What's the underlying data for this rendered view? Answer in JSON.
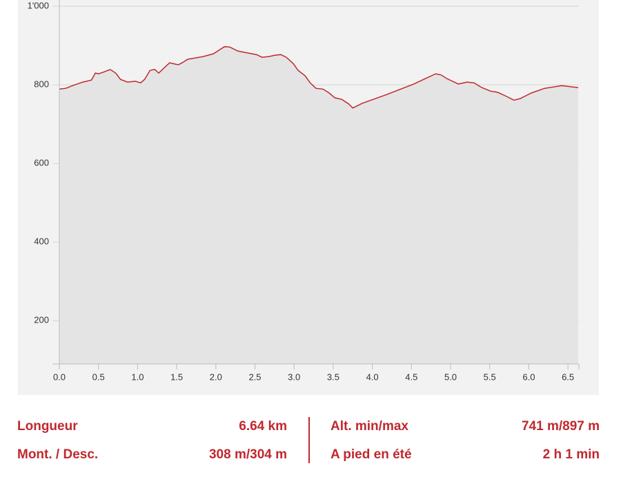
{
  "chart_data": {
    "type": "area",
    "x": [
      0,
      0.08,
      0.17,
      0.3,
      0.41,
      0.46,
      0.5,
      0.56,
      0.65,
      0.72,
      0.78,
      0.87,
      0.97,
      1.04,
      1.09,
      1.16,
      1.22,
      1.27,
      1.36,
      1.41,
      1.52,
      1.57,
      1.64,
      1.73,
      1.84,
      1.97,
      2.04,
      2.11,
      2.18,
      2.28,
      2.41,
      2.52,
      2.59,
      2.68,
      2.75,
      2.83,
      2.9,
      2.99,
      3.05,
      3.14,
      3.21,
      3.28,
      3.37,
      3.45,
      3.52,
      3.61,
      3.7,
      3.75,
      3.87,
      4.18,
      4.53,
      4.7,
      4.81,
      4.88,
      4.95,
      5.1,
      5.21,
      5.3,
      5.4,
      5.51,
      5.6,
      5.7,
      5.81,
      5.89,
      6.03,
      6.2,
      6.42,
      6.63
    ],
    "series": [
      {
        "color": "#c0282d",
        "values": [
          789,
          791,
          798,
          807,
          812,
          830,
          828,
          832,
          839,
          830,
          814,
          807,
          809,
          805,
          814,
          837,
          839,
          830,
          847,
          856,
          851,
          856,
          865,
          868,
          872,
          879,
          888,
          897,
          896,
          886,
          881,
          877,
          870,
          872,
          875,
          877,
          870,
          854,
          837,
          823,
          804,
          791,
          789,
          779,
          767,
          763,
          751,
          741,
          753,
          775,
          802,
          818,
          828,
          825,
          816,
          802,
          807,
          805,
          793,
          784,
          781,
          772,
          761,
          765,
          779,
          791,
          798,
          793
        ]
      }
    ],
    "xlim": [
      0,
      6.64
    ],
    "xticks": [
      {
        "value": 0,
        "label": "0.0"
      },
      0.5,
      {
        "value": 1,
        "label": "1.0"
      },
      1.5,
      {
        "value": 2,
        "label": "2.0"
      },
      2.5,
      {
        "value": 3,
        "label": "3.0"
      },
      3.5,
      {
        "value": 4,
        "label": "4.0"
      },
      4.5,
      {
        "value": 5,
        "label": "5.0"
      },
      5.5,
      {
        "value": 6,
        "label": "6.0"
      },
      6.5
    ],
    "ylim": [
      90,
      1000
    ],
    "yticks": [
      200,
      400,
      600,
      800,
      {
        "value": 1000,
        "label": "1'000"
      }
    ],
    "grid": true
  },
  "stats": [
    {
      "label": "Longueur",
      "value": "6.64 km"
    },
    {
      "label": "Mont. / Desc.",
      "value": "308 m/304 m"
    },
    {
      "label": "Alt. min/max",
      "value": "741 m/897 m"
    },
    {
      "label": "A pied en été",
      "value": "2 h 1 min"
    }
  ]
}
